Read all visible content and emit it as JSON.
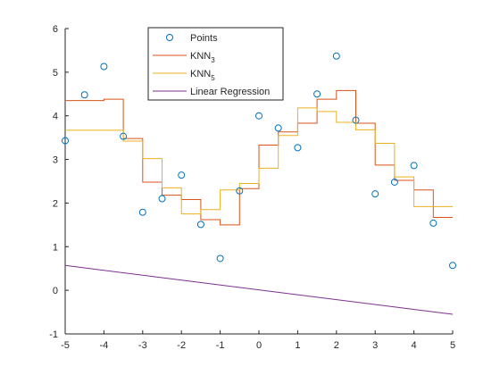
{
  "chart_data": {
    "type": "line",
    "xlim": [
      -5,
      5
    ],
    "ylim": [
      -1,
      6
    ],
    "xticks": [
      -5,
      -4,
      -3,
      -2,
      -1,
      0,
      1,
      2,
      3,
      4,
      5
    ],
    "yticks": [
      -1,
      0,
      1,
      2,
      3,
      4,
      5,
      6
    ],
    "grid": false,
    "legend_position": "top-center",
    "series": [
      {
        "name": "Points",
        "kind": "scatter",
        "color": "#0072BD",
        "points": [
          [
            -5.0,
            3.43
          ],
          [
            -4.5,
            4.48
          ],
          [
            -4.0,
            5.13
          ],
          [
            -3.5,
            3.53
          ],
          [
            -3.0,
            1.79
          ],
          [
            -2.5,
            2.1
          ],
          [
            -2.0,
            2.64
          ],
          [
            -1.5,
            1.51
          ],
          [
            -1.0,
            0.73
          ],
          [
            -0.5,
            2.28
          ],
          [
            0.0,
            4.0
          ],
          [
            0.5,
            3.72
          ],
          [
            1.0,
            3.27
          ],
          [
            1.5,
            4.5
          ],
          [
            2.0,
            5.37
          ],
          [
            2.5,
            3.9
          ],
          [
            3.0,
            2.21
          ],
          [
            3.5,
            2.48
          ],
          [
            4.0,
            2.86
          ],
          [
            4.5,
            1.54
          ],
          [
            5.0,
            0.57
          ]
        ]
      },
      {
        "name": "KNN",
        "name_sub": "3",
        "kind": "stairs",
        "color": "#D95319",
        "x": [
          -5,
          -4.5,
          -4,
          -3.5,
          -3,
          -2.5,
          -2,
          -1.5,
          -1,
          -0.5,
          0,
          0.5,
          1,
          1.5,
          2,
          2.5,
          3,
          3.5,
          4,
          4.5,
          5
        ],
        "y": [
          4.35,
          4.35,
          4.38,
          3.48,
          2.48,
          2.18,
          2.08,
          1.62,
          1.5,
          2.33,
          3.33,
          3.63,
          3.83,
          4.38,
          4.58,
          3.83,
          2.87,
          2.52,
          2.3,
          1.67,
          1.67
        ]
      },
      {
        "name": "KNN",
        "name_sub": "5",
        "kind": "stairs",
        "color": "#EDB120",
        "x": [
          -5,
          -4.5,
          -4,
          -3.5,
          -3,
          -2.5,
          -2,
          -1.5,
          -1,
          -0.5,
          0,
          0.5,
          1,
          1.5,
          2,
          2.5,
          3,
          3.5,
          4,
          4.5,
          5
        ],
        "y": [
          3.67,
          3.67,
          3.67,
          3.42,
          3.02,
          2.35,
          1.75,
          1.85,
          2.3,
          2.45,
          2.8,
          3.55,
          4.18,
          4.1,
          3.85,
          3.68,
          3.37,
          2.6,
          1.92,
          1.92,
          1.92
        ]
      },
      {
        "name": "Linear Regression",
        "kind": "line",
        "color": "#7E2F8E",
        "x": [
          -5,
          5
        ],
        "y": [
          0.57,
          -0.55
        ]
      }
    ]
  }
}
